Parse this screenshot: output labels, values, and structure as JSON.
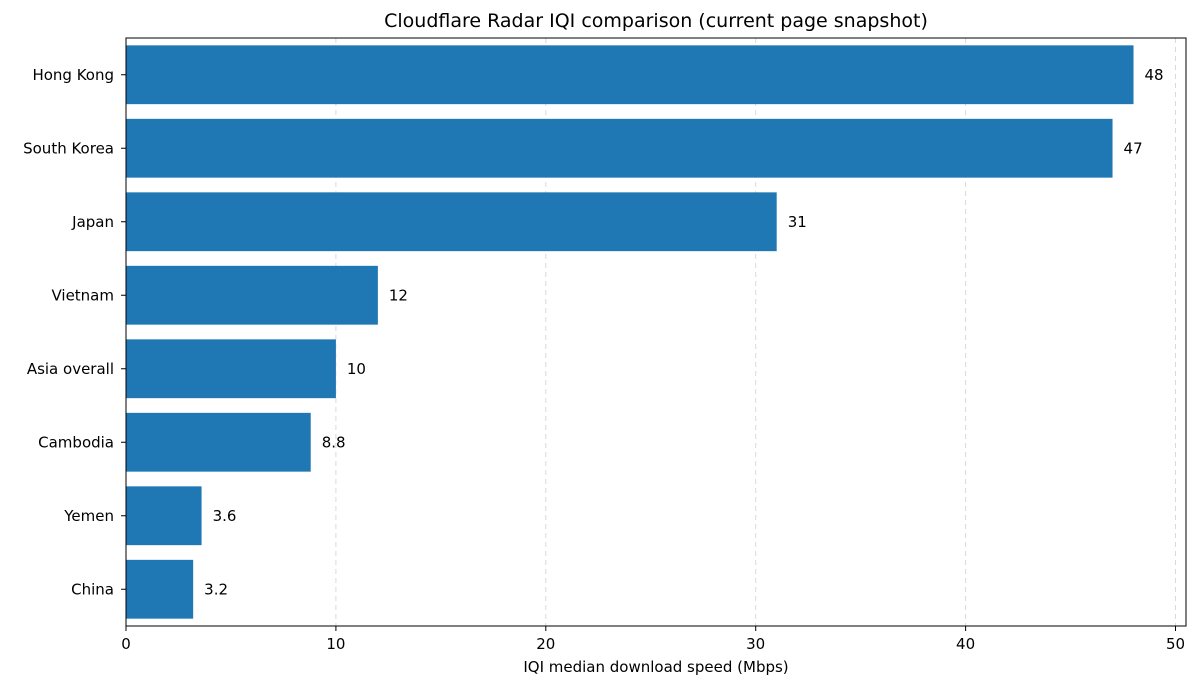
{
  "chart_data": {
    "type": "bar",
    "orientation": "horizontal",
    "title": "Cloudflare Radar IQI comparison (current page snapshot)",
    "xlabel": "IQI median download speed (Mbps)",
    "ylabel": "",
    "xlim": [
      0,
      50.5
    ],
    "xticks": [
      0,
      10,
      20,
      30,
      40,
      50
    ],
    "grid": "x-dashed",
    "bar_color": "#1f77b4",
    "categories": [
      "Hong Kong",
      "South Korea",
      "Japan",
      "Vietnam",
      "Asia overall",
      "Cambodia",
      "Yemen",
      "China"
    ],
    "values": [
      48,
      47,
      31,
      12,
      10,
      8.8,
      3.6,
      3.2
    ],
    "value_labels": [
      "48",
      "47",
      "31",
      "12",
      "10",
      "8.8",
      "3.6",
      "3.2"
    ]
  }
}
